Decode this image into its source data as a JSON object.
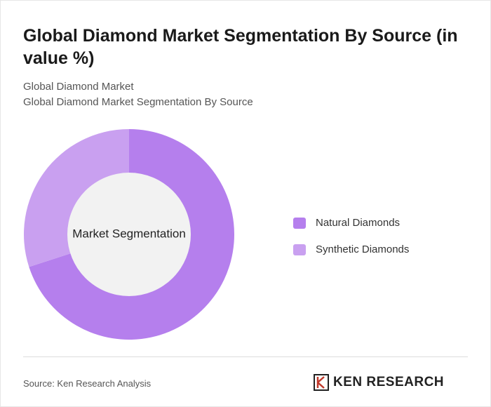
{
  "chart_data": {
    "type": "donut",
    "title": "Global Diamond Market Segmentation By Source (in value %)",
    "subtitle": "Global Diamond Market",
    "subtitle2": "Global Diamond Market Segmentation By Source",
    "center_label": "Market Segmentation",
    "categories": [
      "Natural Diamonds",
      "Synthetic Diamonds"
    ],
    "values": [
      70,
      30
    ],
    "colors": [
      "#b57fed",
      "#c9a0f0"
    ],
    "legend": "right"
  },
  "source": "Source: Ken Research Analysis",
  "logo": "KEN RESEARCH"
}
